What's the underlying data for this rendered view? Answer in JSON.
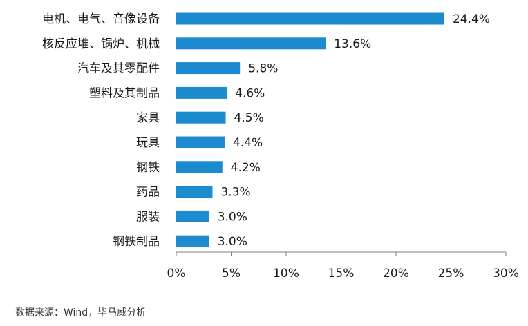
{
  "chart_data": {
    "type": "bar",
    "orientation": "horizontal",
    "categories": [
      "电机、电气、音像设备",
      "核反应堆、锅炉、机械",
      "汽车及其零配件",
      "塑料及其制品",
      "家具",
      "玩具",
      "钢铁",
      "药品",
      "服装",
      "钢铁制品"
    ],
    "values": [
      24.4,
      13.6,
      5.8,
      4.6,
      4.5,
      4.4,
      4.2,
      3.3,
      3.0,
      3.0
    ],
    "value_labels": [
      "24.4%",
      "13.6%",
      "5.8%",
      "4.6%",
      "4.5%",
      "4.4%",
      "4.2%",
      "3.3%",
      "3.0%",
      "3.0%"
    ],
    "xlim": [
      0,
      30
    ],
    "xticks": [
      0,
      5,
      10,
      15,
      20,
      25,
      30
    ],
    "xtick_labels": [
      "0%",
      "5%",
      "10%",
      "15%",
      "20%",
      "25%",
      "30%"
    ],
    "grid": false,
    "legend": "none",
    "bar_color": "#1c8bd0"
  },
  "source_note": "数据来源：Wind，毕马威分析"
}
